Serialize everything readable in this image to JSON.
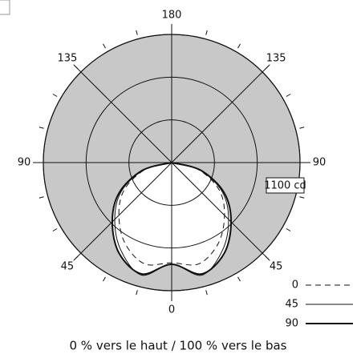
{
  "chart_data": {
    "type": "polar",
    "caption": "0 % vers le haut / 100 % vers le bas",
    "rlim": [
      0,
      1100
    ],
    "rticks": [
      {
        "value": 1100,
        "label": "1100 cd"
      }
    ],
    "thetaticks": [
      0,
      45,
      90,
      135,
      180
    ],
    "x": [
      -90,
      -75,
      -60,
      -45,
      -30,
      -15,
      0,
      15,
      30,
      45,
      60,
      75,
      90
    ],
    "series": [
      {
        "name": "0",
        "color": "#111111",
        "style": "dashed",
        "values": [
          0,
          240,
          470,
          640,
          800,
          900,
          860,
          900,
          800,
          640,
          470,
          240,
          0
        ]
      },
      {
        "name": "45",
        "color": "#111111",
        "style": "thin",
        "values": [
          0,
          250,
          500,
          690,
          870,
          1000,
          873,
          1000,
          870,
          690,
          500,
          250,
          0
        ]
      },
      {
        "name": "90",
        "color": "#111111",
        "style": "thick",
        "values": [
          0,
          260,
          520,
          720,
          900,
          990,
          873,
          990,
          900,
          720,
          520,
          260,
          0
        ]
      }
    ]
  }
}
